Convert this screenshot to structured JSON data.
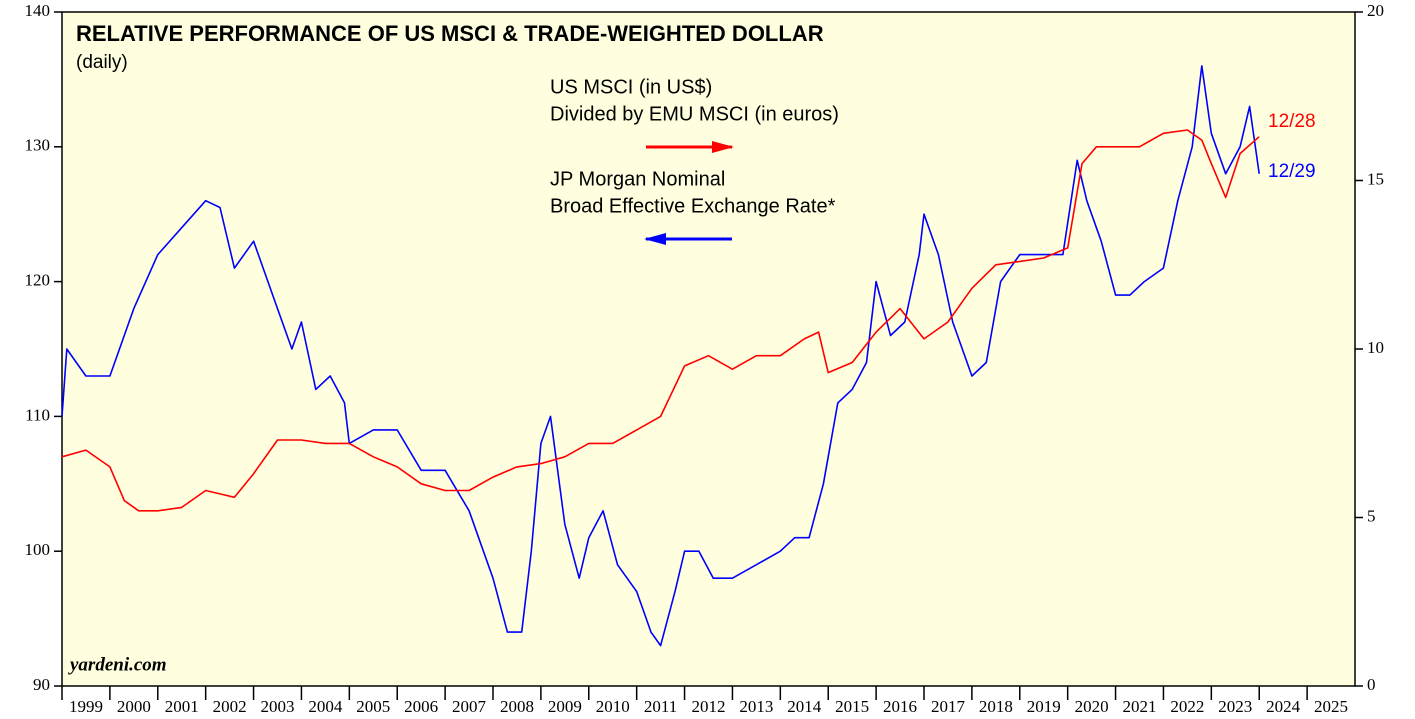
{
  "chart_data": {
    "type": "line",
    "title": "RELATIVE PERFORMANCE OF US MSCI & TRADE-WEIGHTED DOLLAR",
    "subtitle": "(daily)",
    "source": "yardeni.com",
    "legend": [
      {
        "lines": [
          "US MSCI (in US$)",
          "Divided by EMU MSCI (in euros)"
        ],
        "arrow": "right",
        "color": "#ff0000"
      },
      {
        "lines": [
          "JP Morgan Nominal",
          "Broad Effective Exchange Rate*"
        ],
        "arrow": "left",
        "color": "#0000ff"
      }
    ],
    "end_labels": [
      {
        "text": "12/28",
        "color": "#ff0000"
      },
      {
        "text": "12/29",
        "color": "#0000ff"
      }
    ],
    "xlim": [
      1999,
      2026
    ],
    "xticks": [
      {
        "value": 1999,
        "label": "1999"
      },
      {
        "value": 2000,
        "label": "2000"
      },
      {
        "value": 2001,
        "label": "2001"
      },
      {
        "value": 2002,
        "label": "2002"
      },
      {
        "value": 2003,
        "label": "2003"
      },
      {
        "value": 2004,
        "label": "2004"
      },
      {
        "value": 2005,
        "label": "2005"
      },
      {
        "value": 2006,
        "label": "2006"
      },
      {
        "value": 2007,
        "label": "2007"
      },
      {
        "value": 2008,
        "label": "2008"
      },
      {
        "value": 2009,
        "label": "2009"
      },
      {
        "value": 2010,
        "label": "2010"
      },
      {
        "value": 2011,
        "label": "2011"
      },
      {
        "value": 2012,
        "label": "2012"
      },
      {
        "value": 2013,
        "label": "2013"
      },
      {
        "value": 2014,
        "label": "2014"
      },
      {
        "value": 2015,
        "label": "2015"
      },
      {
        "value": 2016,
        "label": "2016"
      },
      {
        "value": 2017,
        "label": "2017"
      },
      {
        "value": 2018,
        "label": "2018"
      },
      {
        "value": 2019,
        "label": "2019"
      },
      {
        "value": 2020,
        "label": "2020"
      },
      {
        "value": 2021,
        "label": "2021"
      },
      {
        "value": 2022,
        "label": "2022"
      },
      {
        "value": 2023,
        "label": "2023"
      },
      {
        "value": 2024,
        "label": "2024"
      },
      {
        "value": 2025,
        "label": "2025"
      }
    ],
    "ylim": [
      90,
      140
    ],
    "yticks": [
      90,
      100,
      110,
      120,
      130,
      140
    ],
    "y2lim": [
      0,
      20
    ],
    "y2ticks": [
      0,
      5,
      10,
      15,
      20
    ],
    "series": [
      {
        "name": "JP Morgan Nominal Broad Effective Exchange Rate*",
        "color": "#0000ff",
        "axis": "y",
        "x": [
          1999.0,
          1999.1,
          1999.5,
          2000.0,
          2000.5,
          2001.0,
          2001.5,
          2002.0,
          2002.3,
          2002.6,
          2003.0,
          2003.5,
          2003.8,
          2004.0,
          2004.3,
          2004.6,
          2004.9,
          2005.0,
          2005.5,
          2006.0,
          2006.5,
          2007.0,
          2007.5,
          2007.8,
          2008.0,
          2008.3,
          2008.6,
          2008.8,
          2009.0,
          2009.2,
          2009.5,
          2009.8,
          2010.0,
          2010.3,
          2010.6,
          2011.0,
          2011.3,
          2011.5,
          2011.8,
          2012.0,
          2012.3,
          2012.6,
          2013.0,
          2013.5,
          2014.0,
          2014.3,
          2014.6,
          2014.9,
          2015.2,
          2015.5,
          2015.8,
          2016.0,
          2016.3,
          2016.6,
          2016.9,
          2017.0,
          2017.3,
          2017.6,
          2017.9,
          2018.0,
          2018.3,
          2018.6,
          2019.0,
          2019.5,
          2019.9,
          2020.2,
          2020.4,
          2020.7,
          2021.0,
          2021.3,
          2021.6,
          2022.0,
          2022.3,
          2022.6,
          2022.8,
          2023.0,
          2023.3,
          2023.6,
          2023.8,
          2024.0
        ],
        "values": [
          110,
          115,
          113,
          113,
          118,
          122,
          124,
          126,
          125.5,
          121,
          123,
          118,
          115,
          117,
          112,
          113,
          111,
          108,
          109,
          109,
          106,
          106,
          103,
          100,
          98,
          94,
          94,
          100,
          108,
          110,
          102,
          98,
          101,
          103,
          99,
          97,
          94,
          93,
          97,
          100,
          100,
          98,
          98,
          99,
          100,
          101,
          101,
          105,
          111,
          112,
          114,
          120,
          116,
          117,
          122,
          125,
          122,
          117,
          114,
          113,
          114,
          120,
          122,
          122,
          122,
          129,
          126,
          123,
          119,
          119,
          120,
          121,
          126,
          130,
          136,
          131,
          128,
          130,
          133,
          128
        ]
      },
      {
        "name": "US MSCI (in US$) Divided by EMU MSCI (in euros)",
        "color": "#ff0000",
        "axis": "y2",
        "x": [
          1999.0,
          1999.5,
          2000.0,
          2000.3,
          2000.6,
          2001.0,
          2001.5,
          2002.0,
          2002.3,
          2002.6,
          2003.0,
          2003.5,
          2004.0,
          2004.5,
          2005.0,
          2005.5,
          2006.0,
          2006.5,
          2007.0,
          2007.5,
          2008.0,
          2008.5,
          2009.0,
          2009.5,
          2010.0,
          2010.5,
          2011.0,
          2011.5,
          2012.0,
          2012.5,
          2013.0,
          2013.5,
          2014.0,
          2014.5,
          2014.8,
          2015.0,
          2015.5,
          2016.0,
          2016.5,
          2017.0,
          2017.5,
          2018.0,
          2018.5,
          2019.0,
          2019.5,
          2020.0,
          2020.3,
          2020.6,
          2021.0,
          2021.5,
          2022.0,
          2022.5,
          2022.8,
          2023.0,
          2023.3,
          2023.6,
          2024.0
        ],
        "values": [
          6.8,
          7.0,
          6.5,
          5.5,
          5.2,
          5.2,
          5.3,
          5.8,
          5.7,
          5.6,
          6.3,
          7.3,
          7.3,
          7.2,
          7.2,
          6.8,
          6.5,
          6.0,
          5.8,
          5.8,
          6.2,
          6.5,
          6.6,
          6.8,
          7.2,
          7.2,
          7.6,
          8.0,
          9.5,
          9.8,
          9.4,
          9.8,
          9.8,
          10.3,
          10.5,
          9.3,
          9.6,
          10.5,
          11.2,
          10.3,
          10.8,
          11.8,
          12.5,
          12.6,
          12.7,
          13.0,
          15.5,
          16.0,
          16.0,
          16.0,
          16.4,
          16.5,
          16.2,
          15.5,
          14.5,
          15.8,
          16.3
        ]
      }
    ]
  }
}
